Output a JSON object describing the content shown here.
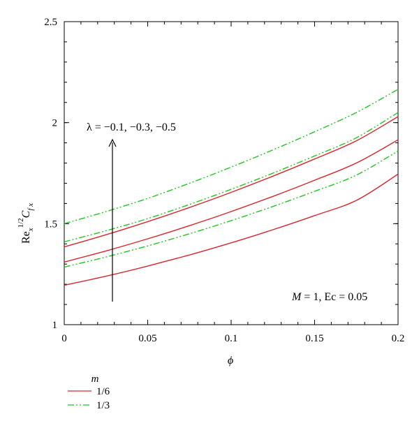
{
  "chart_data": {
    "type": "line",
    "xlabel": "ϕ",
    "ylabel": "Re_x^{1/2} C_{f x}",
    "xlim": [
      0,
      0.2
    ],
    "ylim": [
      1,
      2.5
    ],
    "xticks": [
      "0",
      "0.05",
      "0.1",
      "0.15",
      "0.2"
    ],
    "yticks": [
      "1",
      "1.5",
      "2",
      "2.5"
    ],
    "grid": false,
    "annotations": {
      "lambda": "λ = −0.1, −0.3, −0.5",
      "params": "M = 1, Ec = 0.05"
    },
    "legend": {
      "title": "m",
      "placement": "bottom-left",
      "entries": [
        {
          "label": "1/6",
          "color": "#d6262c",
          "dash": "solid"
        },
        {
          "label": "1/3",
          "color": "#22c422",
          "dash": "dashdotdot"
        }
      ]
    },
    "x": [
      0,
      0.025,
      0.05,
      0.075,
      0.1,
      0.125,
      0.15,
      0.175,
      0.2
    ],
    "series": [
      {
        "group": "1/6",
        "color": "#d6262c",
        "dash": "solid",
        "values": [
          1.195,
          1.24,
          1.29,
          1.345,
          1.405,
          1.47,
          1.54,
          1.615,
          1.745
        ]
      },
      {
        "group": "1/6",
        "color": "#d6262c",
        "dash": "solid",
        "values": [
          1.31,
          1.365,
          1.425,
          1.49,
          1.56,
          1.635,
          1.715,
          1.8,
          1.915
        ]
      },
      {
        "group": "1/6",
        "color": "#d6262c",
        "dash": "solid",
        "values": [
          1.385,
          1.445,
          1.51,
          1.58,
          1.655,
          1.735,
          1.82,
          1.91,
          2.03
        ]
      },
      {
        "group": "1/3",
        "color": "#22c422",
        "dash": "dashdotdot",
        "values": [
          1.285,
          1.335,
          1.39,
          1.45,
          1.515,
          1.585,
          1.66,
          1.74,
          1.86
        ]
      },
      {
        "group": "1/3",
        "color": "#22c422",
        "dash": "dashdotdot",
        "values": [
          1.41,
          1.465,
          1.525,
          1.595,
          1.67,
          1.75,
          1.835,
          1.925,
          2.05
        ]
      },
      {
        "group": "1/3",
        "color": "#22c422",
        "dash": "dashdotdot",
        "values": [
          1.5,
          1.56,
          1.625,
          1.7,
          1.78,
          1.865,
          1.955,
          2.05,
          2.165
        ]
      }
    ]
  }
}
